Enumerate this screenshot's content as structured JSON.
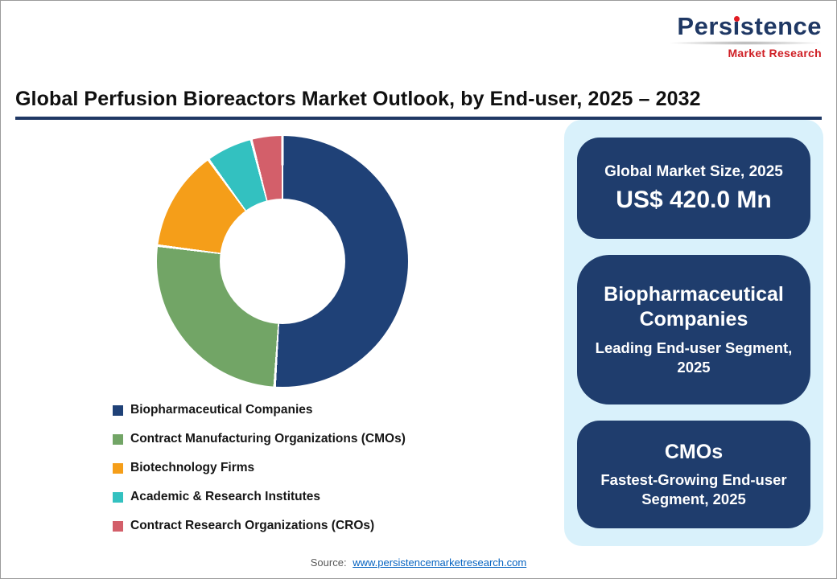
{
  "logo": {
    "p1": "Pers",
    "dotless_i": "ı",
    "p2": "stence",
    "sub": "Market Research",
    "navy": "#1f3864",
    "red": "#cf1f25"
  },
  "header": {
    "title": "Global Perfusion Bioreactors Market Outlook, by End-user, 2025 – 2032"
  },
  "chart_data": {
    "type": "pie",
    "donut": true,
    "inner_radius_ratio": 0.5,
    "title": "Global Perfusion Bioreactors Market Outlook, by End-user, 2025 – 2032",
    "categories": [
      "Biopharmaceutical Companies",
      "Contract Manufacturing Organizations (CMOs)",
      "Biotechnology Firms",
      "Academic & Research Institutes",
      "Contract Research Organizations (CROs)"
    ],
    "values": [
      51,
      26,
      13,
      6,
      4
    ],
    "value_unit": "percent, estimated from segment angles (no data labels shown)",
    "colors": [
      "#1f4177",
      "#72a566",
      "#f59e19",
      "#33c1c0",
      "#d35f6a"
    ],
    "start_angle_deg": 0,
    "direction": "clockwise",
    "legend_position": "bottom-left"
  },
  "sidebar": {
    "cards": [
      {
        "label": "Global Market Size, 2025",
        "value": "US$ 420.0 Mn"
      },
      {
        "title": "Biopharmaceutical Companies",
        "subtitle": "Leading End-user Segment, 2025"
      },
      {
        "title": "CMOs",
        "subtitle": "Fastest-Growing End-user Segment, 2025"
      }
    ]
  },
  "footer": {
    "label": "Source: ",
    "link": "www.persistencemarketresearch.com"
  }
}
